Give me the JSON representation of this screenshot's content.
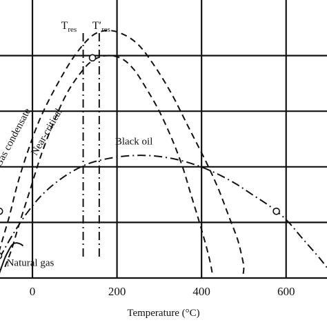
{
  "chart_data": {
    "type": "line",
    "title": "",
    "xlabel": "Temperature (°C)",
    "ylabel": "",
    "xlim": [
      -80,
      700
    ],
    "ylim": [
      0,
      50
    ],
    "grid": true,
    "xticks": [
      0,
      200,
      400,
      600
    ],
    "gridlines_y": [
      10,
      20,
      30,
      40
    ],
    "series": [
      {
        "name": "Gas condensate",
        "style": "dashed",
        "x": [
          -90,
          -78,
          -55,
          -35,
          -10,
          20,
          60,
          100,
          140,
          175,
          210,
          250,
          290,
          330,
          370,
          410,
          440,
          465,
          485,
          495,
          500,
          498
        ],
        "y": [
          1,
          5,
          11,
          17,
          23,
          29,
          35,
          40,
          43.5,
          44.5,
          44,
          42,
          38,
          33,
          27,
          21,
          16,
          11,
          7,
          4,
          2,
          0.5
        ]
      },
      {
        "name": "Near-critical",
        "style": "dashed",
        "x": [
          -65,
          -50,
          -30,
          -5,
          20,
          50,
          80,
          110,
          140,
          175,
          210,
          240,
          270,
          300,
          330,
          355,
          375,
          395,
          410,
          420,
          425
        ],
        "y": [
          2,
          5,
          10,
          16,
          22,
          28,
          33,
          36.5,
          39,
          40,
          39.5,
          37.5,
          34,
          30,
          25,
          20,
          15,
          10,
          6,
          3,
          1
        ]
      },
      {
        "name": "Black oil",
        "style": "dash-dot",
        "x": [
          -95,
          -75,
          -45,
          -10,
          30,
          80,
          130,
          180,
          230,
          280,
          330,
          380,
          430,
          480,
          520,
          560,
          600,
          640,
          680,
          710
        ],
        "y": [
          1,
          4,
          8,
          12,
          15.5,
          18.5,
          20.5,
          21.5,
          22,
          22,
          21.5,
          20.5,
          19,
          17,
          15,
          13,
          10.5,
          7,
          3.5,
          0.5
        ]
      },
      {
        "name": "Natural gas",
        "style": "solid",
        "x": [
          -80,
          -72,
          -64,
          -56,
          -50,
          -44,
          -36,
          -28,
          -22
        ],
        "y": [
          0.5,
          2.2,
          3.8,
          5,
          5.8,
          6.2,
          6.3,
          6.1,
          5.8
        ]
      }
    ],
    "reference_lines": [
      {
        "label_main": "T",
        "label_sub": "res",
        "label_prime": "",
        "x": 120,
        "style": "dash-dot"
      },
      {
        "label_main": "T",
        "label_sub": "res",
        "label_prime": "′",
        "x": 158,
        "style": "dash-dot"
      }
    ],
    "critical_points": [
      {
        "series": "Near-critical",
        "x": 142,
        "y": 39.6
      },
      {
        "series": "Gas condensate",
        "x": -78,
        "y": 12
      },
      {
        "series": "Natural gas",
        "x": -80,
        "y": 4
      },
      {
        "series": "Black oil",
        "x": 577,
        "y": 12
      }
    ],
    "annotations": [
      {
        "text": "Gas condensate",
        "x": -40,
        "y": 25,
        "rotate": -62
      },
      {
        "text": "Near-critical",
        "x": 40,
        "y": 26,
        "rotate": -60
      },
      {
        "text": "Black oil",
        "x": 240,
        "y": 24,
        "rotate": 0
      },
      {
        "text": "Natural gas",
        "x": -5,
        "y": 2.2,
        "rotate": 0
      }
    ]
  }
}
